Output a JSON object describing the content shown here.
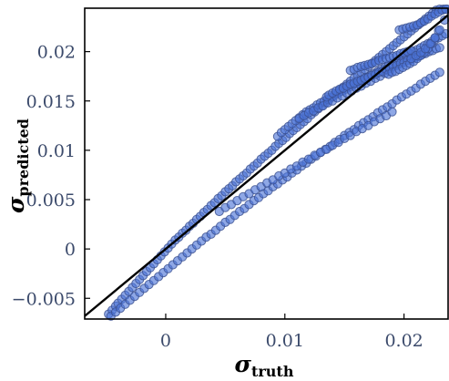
{
  "chart_data": {
    "type": "scatter",
    "title": "",
    "xlabel": "σ",
    "xlabel_sub": "truth",
    "ylabel": "σ",
    "ylabel_sub": "predicted",
    "xlim": [
      -0.0068,
      0.0237
    ],
    "ylim": [
      -0.0071,
      0.0244
    ],
    "x_ticks": [
      0,
      0.01,
      0.02
    ],
    "x_tick_labels": [
      "0",
      "0.01",
      "0.02"
    ],
    "y_ticks": [
      -0.005,
      0,
      0.005,
      0.01,
      0.015,
      0.02
    ],
    "y_tick_labels": [
      "−0.005",
      "0",
      "0.005",
      "0.01",
      "0.015",
      "0.02"
    ],
    "grid": false,
    "legend": "none",
    "reference_line": {
      "type": "identity",
      "color": "#000000"
    },
    "marker_fill": "#4a72d6",
    "marker_edge": "#3a4f8f",
    "series": [
      {
        "x": [
          -0.0048,
          -0.0045,
          -0.0042,
          -0.004,
          -0.0037,
          -0.0034,
          -0.0031,
          -0.0028,
          -0.0025,
          -0.0022,
          -0.0019,
          -0.0016,
          -0.0013,
          -0.001,
          -0.0007,
          -0.0004,
          -0.0001,
          0.0002,
          0.0005,
          0.0008,
          0.0011,
          0.0014,
          0.0017,
          0.002,
          0.0023,
          0.0026,
          0.0029,
          0.0032,
          0.0035,
          0.0038,
          0.0041,
          0.0044,
          0.0047,
          0.005,
          0.0053,
          0.0056,
          0.0059,
          0.0062,
          0.0065,
          0.0068,
          0.0071,
          0.0074,
          0.0077,
          0.008,
          0.0083,
          0.0086,
          0.0089,
          0.0092,
          0.0095,
          0.0098,
          0.0101,
          0.0104,
          0.0107,
          0.011,
          0.0113,
          0.0116,
          0.0119,
          0.0122,
          0.0125,
          0.0128,
          0.0131,
          0.0134,
          0.0137,
          0.014,
          0.0143,
          0.0146,
          0.0149,
          0.0152,
          0.0155,
          0.0158,
          0.0161,
          0.0164,
          0.0167,
          0.017,
          0.0173,
          0.0176,
          0.0179,
          0.0182,
          0.0185,
          0.0188,
          0.0191,
          0.0194,
          0.0197,
          0.02,
          0.0203,
          0.0206,
          0.0209,
          0.0212,
          0.0215,
          0.0218,
          0.0221,
          0.0224,
          0.0227,
          0.023,
          0.0233,
          0.0236
        ],
        "y": [
          -0.0066,
          -0.0062,
          -0.0058,
          -0.0055,
          -0.0051,
          -0.0047,
          -0.0043,
          -0.0039,
          -0.0035,
          -0.0031,
          -0.0027,
          -0.0023,
          -0.0019,
          -0.0015,
          -0.0011,
          -0.0007,
          -0.0003,
          0.0001,
          0.0005,
          0.0009,
          0.0012,
          0.0016,
          0.0019,
          0.0023,
          0.0026,
          0.003,
          0.0033,
          0.0037,
          0.004,
          0.0044,
          0.0047,
          0.0051,
          0.0054,
          0.0058,
          0.0061,
          0.0064,
          0.0068,
          0.0071,
          0.0074,
          0.0077,
          0.0081,
          0.0084,
          0.0087,
          0.0091,
          0.0094,
          0.0097,
          0.01,
          0.0104,
          0.0107,
          0.011,
          0.0113,
          0.0117,
          0.012,
          0.0123,
          0.0126,
          0.0129,
          0.0132,
          0.0136,
          0.0139,
          0.0142,
          0.0145,
          0.0148,
          0.0151,
          0.0154,
          0.0158,
          0.0161,
          0.0164,
          0.0167,
          0.017,
          0.0173,
          0.0176,
          0.0179,
          0.0182,
          0.0185,
          0.0188,
          0.0191,
          0.0194,
          0.0197,
          0.02,
          0.0203,
          0.0206,
          0.0209,
          0.0212,
          0.0215,
          0.0218,
          0.0221,
          0.0224,
          0.0227,
          0.023,
          0.0233,
          0.0236,
          0.0239,
          0.0242,
          0.0243,
          0.0243,
          0.0243
        ]
      },
      {
        "x": [
          -0.0046,
          -0.0042,
          -0.0038,
          -0.0034,
          -0.003,
          -0.0026,
          -0.0022,
          -0.0018,
          -0.0014,
          -0.001,
          -0.0006,
          -0.0002,
          0.0002,
          0.0006,
          0.001,
          0.0014,
          0.0018,
          0.0022,
          0.0026,
          0.003,
          0.0034,
          0.0038,
          0.0042,
          0.0046,
          0.005,
          0.0054,
          0.0058,
          0.0062,
          0.0066,
          0.007,
          0.0074,
          0.0078,
          0.0082,
          0.0086,
          0.009,
          0.0094,
          0.0098,
          0.0102,
          0.0106,
          0.011,
          0.0114,
          0.0118,
          0.0122,
          0.0126,
          0.013,
          0.0134,
          0.0138,
          0.0142,
          0.0146,
          0.015,
          0.0154,
          0.0158,
          0.0162,
          0.0166,
          0.017,
          0.0174,
          0.0178,
          0.0182,
          0.0186,
          0.019,
          0.0194,
          0.0198,
          0.0202,
          0.0206,
          0.021,
          0.0214,
          0.0218,
          0.0222,
          0.0226,
          0.023
        ],
        "y": [
          -0.0068,
          -0.0064,
          -0.006,
          -0.0056,
          -0.0052,
          -0.0048,
          -0.0044,
          -0.004,
          -0.0036,
          -0.0032,
          -0.0028,
          -0.0024,
          -0.002,
          -0.0016,
          -0.0012,
          -0.0008,
          -0.0004,
          0.0,
          0.0004,
          0.0008,
          0.0012,
          0.0015,
          0.0019,
          0.0023,
          0.0027,
          0.003,
          0.0034,
          0.0038,
          0.0041,
          0.0045,
          0.0049,
          0.0052,
          0.0056,
          0.0059,
          0.0063,
          0.0066,
          0.007,
          0.0073,
          0.0077,
          0.008,
          0.0084,
          0.0087,
          0.0091,
          0.0094,
          0.0098,
          0.0101,
          0.0104,
          0.0108,
          0.0111,
          0.0115,
          0.0118,
          0.0121,
          0.0125,
          0.0128,
          0.0131,
          0.0134,
          0.0138,
          0.0141,
          0.0144,
          0.0147,
          0.0151,
          0.0154,
          0.0157,
          0.016,
          0.0163,
          0.0167,
          0.017,
          0.0173,
          0.0176,
          0.0179
        ]
      },
      {
        "x": [
          0.0045,
          0.005,
          0.0055,
          0.006,
          0.0065,
          0.007,
          0.0075,
          0.008,
          0.0085,
          0.009,
          0.0095,
          0.01,
          0.0105,
          0.011,
          0.0115,
          0.012,
          0.0125,
          0.013,
          0.0135,
          0.014,
          0.0145,
          0.015,
          0.0155,
          0.016,
          0.0165,
          0.017,
          0.0175,
          0.018,
          0.0185,
          0.019
        ],
        "y": [
          0.0038,
          0.0042,
          0.0045,
          0.0049,
          0.0053,
          0.0056,
          0.006,
          0.0063,
          0.0067,
          0.007,
          0.0074,
          0.0077,
          0.0081,
          0.0084,
          0.0088,
          0.0091,
          0.0095,
          0.0098,
          0.0101,
          0.0105,
          0.0108,
          0.0112,
          0.0115,
          0.0119,
          0.0122,
          0.0125,
          0.0129,
          0.0132,
          0.0135,
          0.0139
        ]
      },
      {
        "x": [
          0.0094,
          0.0097,
          0.01,
          0.0103,
          0.0106,
          0.0109,
          0.0112,
          0.0115,
          0.0118,
          0.0121,
          0.0124,
          0.0127,
          0.013,
          0.0133,
          0.0136,
          0.0139,
          0.0142,
          0.0145,
          0.0148,
          0.0151,
          0.0154,
          0.0157,
          0.016,
          0.0163,
          0.0166,
          0.0169,
          0.0172,
          0.0175,
          0.0178,
          0.0181,
          0.0184,
          0.0187,
          0.019,
          0.0193,
          0.0196,
          0.0199,
          0.0202,
          0.0205,
          0.0208,
          0.0211,
          0.0214,
          0.0217,
          0.022,
          0.0223,
          0.0226,
          0.0229,
          0.0232,
          0.0235
        ],
        "y": [
          0.0114,
          0.0118,
          0.0121,
          0.0124,
          0.0127,
          0.013,
          0.0133,
          0.0136,
          0.0139,
          0.0141,
          0.0143,
          0.0146,
          0.0148,
          0.015,
          0.0152,
          0.0154,
          0.0156,
          0.0158,
          0.016,
          0.0162,
          0.0164,
          0.0166,
          0.0168,
          0.017,
          0.0172,
          0.0174,
          0.0176,
          0.0178,
          0.018,
          0.0182,
          0.0184,
          0.0186,
          0.0188,
          0.019,
          0.0192,
          0.0194,
          0.0196,
          0.0198,
          0.02,
          0.0202,
          0.0204,
          0.0206,
          0.0208,
          0.021,
          0.0212,
          0.0214,
          0.0216,
          0.0218
        ]
      },
      {
        "x": [
          0.0112,
          0.0116,
          0.012,
          0.0124,
          0.0128,
          0.0132,
          0.0136,
          0.014,
          0.0144,
          0.0148,
          0.0152,
          0.0156,
          0.016,
          0.0164,
          0.0168,
          0.0172,
          0.0176,
          0.018,
          0.0184,
          0.0188
        ],
        "y": [
          0.0132,
          0.0135,
          0.0138,
          0.014,
          0.0143,
          0.0145,
          0.0148,
          0.015,
          0.0153,
          0.0155,
          0.0158,
          0.016,
          0.0163,
          0.0165,
          0.0168,
          0.017,
          0.0173,
          0.0175,
          0.0178,
          0.018
        ]
      },
      {
        "x": [
          0.0135,
          0.0137,
          0.014,
          0.0143,
          0.0146,
          0.0149,
          0.0152,
          0.0155,
          0.0158,
          0.0161,
          0.0164,
          0.0167,
          0.017,
          0.0173,
          0.0176,
          0.0179,
          0.0182,
          0.0185,
          0.0188,
          0.0191,
          0.0194,
          0.0197,
          0.02,
          0.0203,
          0.0206,
          0.0209,
          0.0212,
          0.0215,
          0.0218,
          0.0221,
          0.0224,
          0.0227,
          0.023
        ],
        "y": [
          0.0154,
          0.0156,
          0.0158,
          0.016,
          0.0162,
          0.0163,
          0.0165,
          0.0167,
          0.0168,
          0.017,
          0.0171,
          0.0173,
          0.0174,
          0.0176,
          0.0177,
          0.0179,
          0.018,
          0.0182,
          0.0183,
          0.0185,
          0.0186,
          0.0188,
          0.0189,
          0.0191,
          0.0192,
          0.0194,
          0.0195,
          0.0197,
          0.0198,
          0.02,
          0.0201,
          0.0203,
          0.0204
        ]
      },
      {
        "x": [
          0.0155,
          0.0158,
          0.0161,
          0.0164,
          0.0167,
          0.017,
          0.0173,
          0.0176,
          0.0179,
          0.0182,
          0.0185,
          0.0188,
          0.0191,
          0.0194,
          0.0197,
          0.02,
          0.0203,
          0.0206
        ],
        "y": [
          0.0181,
          0.0182,
          0.0184,
          0.0185,
          0.0186,
          0.0187,
          0.0188,
          0.0189,
          0.0191,
          0.0192,
          0.0193,
          0.0194,
          0.0195,
          0.0196,
          0.0198,
          0.0199,
          0.02,
          0.0201
        ]
      },
      {
        "x": [
          0.0187,
          0.019,
          0.0193,
          0.0196,
          0.0199,
          0.0202,
          0.0205,
          0.0208,
          0.0211,
          0.0214,
          0.0217,
          0.022,
          0.0223,
          0.0226,
          0.0229
        ],
        "y": [
          0.0177,
          0.0179,
          0.018,
          0.0182,
          0.0184,
          0.0186,
          0.0188,
          0.019,
          0.0193,
          0.0196,
          0.0199,
          0.0203,
          0.0208,
          0.0214,
          0.0221
        ]
      },
      {
        "x": [
          0.0196,
          0.0199,
          0.0202,
          0.0205,
          0.0208,
          0.0211,
          0.0214,
          0.0217,
          0.022,
          0.0223,
          0.0226,
          0.0229,
          0.0232,
          0.0235
        ],
        "y": [
          0.0222,
          0.0223,
          0.0224,
          0.0225,
          0.0226,
          0.0227,
          0.0229,
          0.0231,
          0.0233,
          0.0236,
          0.0238,
          0.024,
          0.0242,
          0.0243
        ]
      },
      {
        "x": [
          0.0206,
          0.021,
          0.0214,
          0.0218,
          0.0222,
          0.0226,
          0.023,
          0.0234
        ],
        "y": [
          0.0193,
          0.0196,
          0.0199,
          0.0203,
          0.0208,
          0.0214,
          0.0222,
          0.0232
        ]
      }
    ]
  }
}
